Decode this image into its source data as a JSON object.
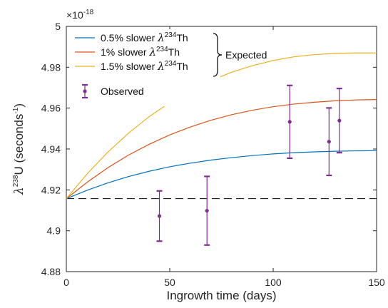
{
  "chart_data": {
    "type": "line",
    "exponent_label": "×10",
    "exponent_power": "-18",
    "y_axis": {
      "prefix": "λ",
      "sup": "238",
      "mid": "U (seconds",
      "sup2": "-1",
      "suffix": ")"
    },
    "xlabel": "Ingrowth time (days)",
    "xlim": [
      0,
      150
    ],
    "ylim": [
      4.88,
      5.0
    ],
    "xticks": [
      0,
      50,
      100,
      150
    ],
    "xtick_labels": [
      "0",
      "50",
      "100",
      "150"
    ],
    "yticks": [
      4.88,
      4.9,
      4.92,
      4.94,
      4.96,
      4.98,
      5.0
    ],
    "ytick_labels": [
      "4.88",
      "4.9",
      "4.92",
      "4.94",
      "4.96",
      "4.98",
      "5"
    ],
    "reference_line": {
      "y": 4.9157,
      "style": "dashed",
      "color": "#000000"
    },
    "x": [
      0,
      10,
      20,
      30,
      40,
      50,
      60,
      70,
      80,
      90,
      100,
      110,
      120,
      130,
      140,
      150
    ],
    "series": [
      {
        "name_prefix": "0.5% slower ",
        "name_symbol": "λ",
        "name_sup": "234",
        "name_suffix": "Th",
        "color": "#0072BD",
        "values": [
          4.9157,
          4.9198,
          4.9234,
          4.9265,
          4.9291,
          4.9313,
          4.9331,
          4.9346,
          4.9358,
          4.9368,
          4.9376,
          4.9382,
          4.9386,
          4.9389,
          4.9391,
          4.9392
        ]
      },
      {
        "name_prefix": "1% slower ",
        "name_symbol": "λ",
        "name_sup": "234",
        "name_suffix": "Th",
        "color": "#D95319",
        "values": [
          4.9157,
          4.9237,
          4.9308,
          4.937,
          4.9423,
          4.9469,
          4.9508,
          4.9541,
          4.9568,
          4.959,
          4.9607,
          4.962,
          4.9629,
          4.9636,
          4.964,
          4.9642
        ]
      },
      {
        "name_prefix": "1.5% slower ",
        "name_symbol": "λ",
        "name_sup": "234",
        "name_suffix": "Th",
        "color": "#EDB120",
        "values": [
          4.9157,
          4.9278,
          4.9384,
          4.9477,
          4.9558,
          4.9627,
          4.9686,
          4.9735,
          4.9776,
          4.9808,
          4.9833,
          4.9851,
          4.9862,
          4.9868,
          4.987,
          4.987
        ]
      }
    ],
    "observed": {
      "name": "Observed",
      "color": "#7E2F8E",
      "points": [
        {
          "x": 45,
          "y": 4.9072,
          "err": 0.0123
        },
        {
          "x": 68,
          "y": 4.9098,
          "err": 0.0168
        },
        {
          "x": 108,
          "y": 4.9533,
          "err": 0.0178
        },
        {
          "x": 127,
          "y": 4.9436,
          "err": 0.0165
        },
        {
          "x": 132,
          "y": 4.9539,
          "err": 0.0157
        }
      ]
    },
    "legend_group_label": "Expected",
    "legend_placement": "top-left",
    "grid": false
  }
}
